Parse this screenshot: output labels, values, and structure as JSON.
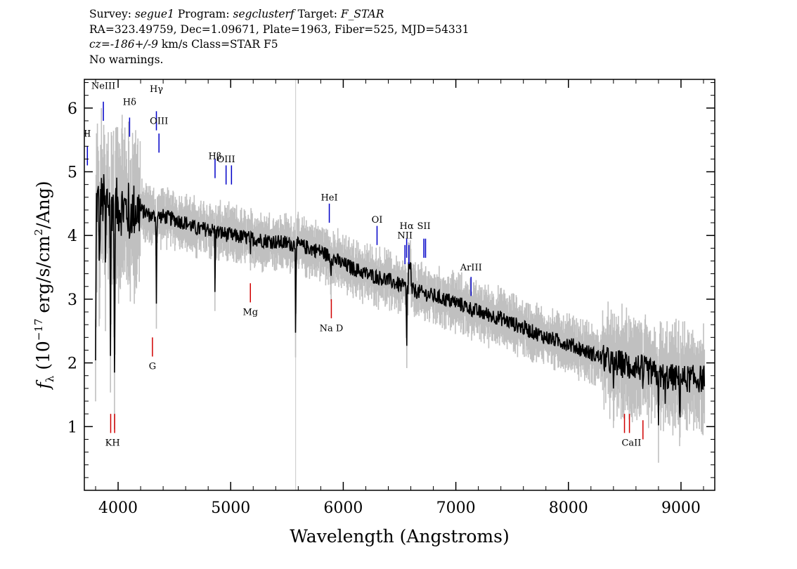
{
  "header": {
    "survey_label": "Survey:",
    "survey": "segue1",
    "program_label": "Program:",
    "program": "segclusterf",
    "target_label": "Target:",
    "target": "F_STAR",
    "line2": "RA=323.49759, Dec=1.09671, Plate=1963, Fiber=525, MJD=54331",
    "cz_label": "cz=",
    "cz_value": "-186+/-9",
    "cz_unit_class": " km/s Class=STAR F5",
    "warnings": "No warnings."
  },
  "chart_data": {
    "type": "line",
    "xlabel": "Wavelength (Angstroms)",
    "ylabel": "f_λ (10^-17 erg/s/cm^2/Ang)",
    "xlim": [
      3700,
      9300
    ],
    "ylim": [
      0,
      6.45
    ],
    "x_ticks": [
      4000,
      5000,
      6000,
      7000,
      8000,
      9000
    ],
    "y_ticks": [
      1,
      2,
      3,
      4,
      5,
      6
    ],
    "tick_labels_x": [
      "4000",
      "5000",
      "6000",
      "7000",
      "8000",
      "9000"
    ],
    "tick_labels_y": [
      "1",
      "2",
      "3",
      "4",
      "5",
      "6"
    ],
    "colors": {
      "spectrum": "#000000",
      "error": "#c0c0c0",
      "emission": "#0000c8",
      "absorption": "#d00000",
      "sky": "#c8c8c8"
    },
    "sky_line": 5577,
    "continuum": [
      [
        3800,
        4.5
      ],
      [
        3900,
        4.55
      ],
      [
        4000,
        4.45
      ],
      [
        4100,
        4.4
      ],
      [
        4200,
        4.4
      ],
      [
        4300,
        4.3
      ],
      [
        4400,
        4.3
      ],
      [
        4500,
        4.25
      ],
      [
        4600,
        4.2
      ],
      [
        4700,
        4.1
      ],
      [
        4800,
        4.1
      ],
      [
        4900,
        4.05
      ],
      [
        5000,
        4.0
      ],
      [
        5200,
        3.95
      ],
      [
        5400,
        3.9
      ],
      [
        5600,
        3.85
      ],
      [
        5800,
        3.75
      ],
      [
        6000,
        3.55
      ],
      [
        6200,
        3.4
      ],
      [
        6400,
        3.3
      ],
      [
        6600,
        3.15
      ],
      [
        6800,
        3.05
      ],
      [
        7000,
        2.95
      ],
      [
        7200,
        2.8
      ],
      [
        7400,
        2.7
      ],
      [
        7600,
        2.55
      ],
      [
        7800,
        2.4
      ],
      [
        8000,
        2.3
      ],
      [
        8200,
        2.15
      ],
      [
        8400,
        2.0
      ],
      [
        8600,
        1.95
      ],
      [
        8800,
        1.8
      ],
      [
        9000,
        1.75
      ],
      [
        9200,
        1.75
      ]
    ],
    "absorption_features": [
      {
        "x": 3800,
        "depth": 2.6
      },
      {
        "x": 3835,
        "depth": 1.3
      },
      {
        "x": 3889,
        "depth": 1.2
      },
      {
        "x": 3933,
        "depth": 2.8
      },
      {
        "x": 3968,
        "depth": 3.0
      },
      {
        "x": 4101,
        "depth": 0.9
      },
      {
        "x": 4340,
        "depth": 1.4
      },
      {
        "x": 4861,
        "depth": 1.1
      },
      {
        "x": 5175,
        "depth": 0.4
      },
      {
        "x": 5577,
        "depth": 1.6
      },
      {
        "x": 5890,
        "depth": 0.3
      },
      {
        "x": 6563,
        "depth": 1.2
      },
      {
        "x": 8400,
        "depth": 0.6
      },
      {
        "x": 8542,
        "depth": 0.5
      },
      {
        "x": 8662,
        "depth": 0.6
      },
      {
        "x": 8800,
        "depth": 0.6
      },
      {
        "x": 8860,
        "depth": 0.5
      },
      {
        "x": 8990,
        "depth": 0.7
      }
    ],
    "emission_lines": [
      {
        "label": "II",
        "x": 3727,
        "label_y": 5.55,
        "top": 5.4,
        "bottom": 5.1
      },
      {
        "label": "NeIII",
        "x": 3869,
        "label_y": 6.3,
        "top": 6.1,
        "bottom": 5.8
      },
      {
        "label": "Hδ",
        "x": 4102,
        "label_y": 6.05,
        "top": 5.85,
        "bottom": 5.55
      },
      {
        "label": "Hγ",
        "x": 4340,
        "label_y": 6.25,
        "top": 5.95,
        "bottom": 5.65
      },
      {
        "label": "OIII",
        "x": 4363,
        "label_y": 5.75,
        "top": 5.6,
        "bottom": 5.3
      },
      {
        "label": "Hβ",
        "x": 4861,
        "label_y": 5.2,
        "top": 5.2,
        "bottom": 4.9
      },
      {
        "label": "OIII",
        "x": 4959,
        "label_y": 5.15,
        "top": 5.1,
        "bottom": 4.8
      },
      {
        "label": "OIII",
        "x": 5007,
        "label_y": 5.15,
        "top": 5.1,
        "bottom": 4.8
      },
      {
        "label": "HeI",
        "x": 5876,
        "label_y": 4.55,
        "top": 4.5,
        "bottom": 4.2
      },
      {
        "label": "OI",
        "x": 6300,
        "label_y": 4.2,
        "top": 4.15,
        "bottom": 3.85
      },
      {
        "label": "NII",
        "x": 6548,
        "label_y": 3.95,
        "top": 3.85,
        "bottom": 3.55
      },
      {
        "label": "Hα",
        "x": 6563,
        "label_y": 4.1,
        "top": 3.95,
        "bottom": 3.65
      },
      {
        "label": "NII",
        "x": 6583,
        "label_y": 3.95,
        "top": 3.85,
        "bottom": 3.55
      },
      {
        "label": "SII",
        "x": 6716,
        "label_y": 4.1,
        "top": 3.95,
        "bottom": 3.65
      },
      {
        "label": "SII",
        "x": 6731,
        "label_y": 4.1,
        "top": 3.95,
        "bottom": 3.65
      },
      {
        "label": "ArIII",
        "x": 7135,
        "label_y": 3.45,
        "top": 3.35,
        "bottom": 3.05
      }
    ],
    "absorption_lines": [
      {
        "label": "K",
        "x": 3934,
        "top": 1.2,
        "bottom": 0.9,
        "label_y": 0.7
      },
      {
        "label": "H",
        "x": 3969,
        "top": 1.2,
        "bottom": 0.9,
        "label_y": 0.7
      },
      {
        "label": "G",
        "x": 4305,
        "top": 2.4,
        "bottom": 2.1,
        "label_y": 1.9
      },
      {
        "label": "Mg",
        "x": 5175,
        "top": 3.25,
        "bottom": 2.95,
        "label_y": 2.75
      },
      {
        "label": "Na D",
        "x": 5894,
        "top": 3.0,
        "bottom": 2.7,
        "label_y": 2.5
      },
      {
        "label": "CaII",
        "x": 8498,
        "top": 1.2,
        "bottom": 0.9,
        "label_y": 0.75
      },
      {
        "label": "CaII",
        "x": 8542,
        "top": 1.2,
        "bottom": 0.9,
        "label_y": 0.75
      },
      {
        "label": "CaII",
        "x": 8662,
        "top": 1.1,
        "bottom": 0.8,
        "label_y": 0.75
      }
    ],
    "absorption_label_text": {
      "kh": "KH",
      "g": "G",
      "mg": "Mg",
      "nad": "Na D",
      "caii": "CaII"
    }
  }
}
